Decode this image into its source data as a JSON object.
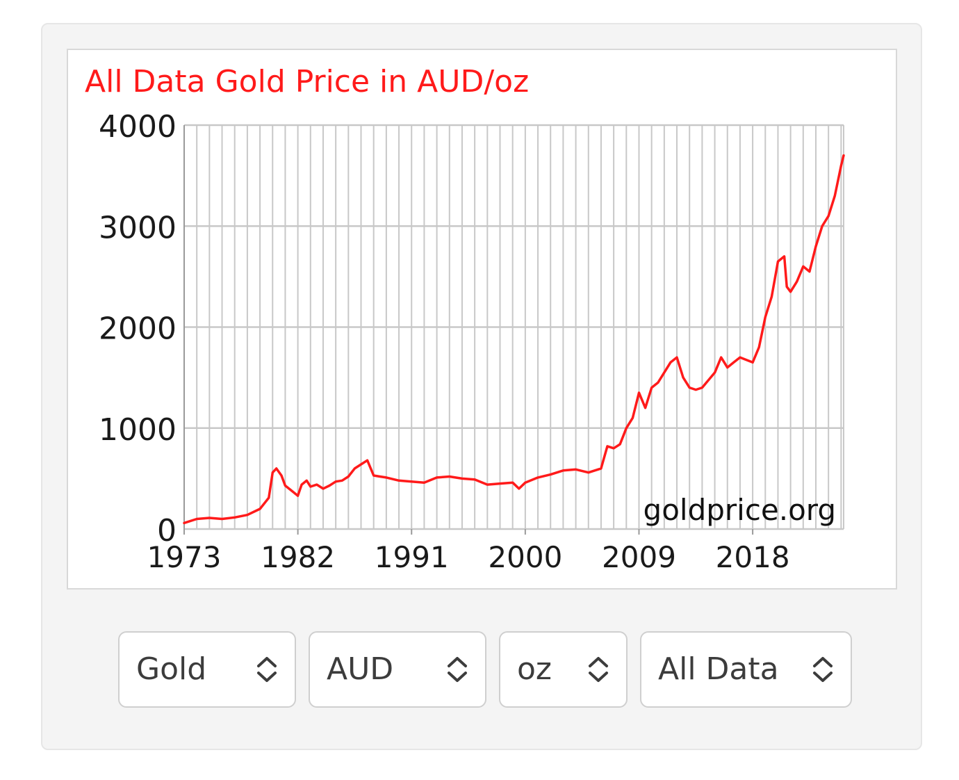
{
  "chart_data": {
    "type": "line",
    "title": "All Data Gold Price in AUD/oz",
    "title_color": "#ff1a1a",
    "line_color": "#ff1a1a",
    "watermark": "goldprice.org",
    "ylim": [
      0,
      4000
    ],
    "yticks": [
      0,
      1000,
      2000,
      3000,
      4000
    ],
    "xlim": [
      1973,
      2025.2
    ],
    "xticks": [
      1973,
      1982,
      1991,
      2000,
      2009,
      2018
    ],
    "grid": true,
    "series": [
      {
        "x": [
          1973.0,
          1974.0,
          1975.0,
          1976.0,
          1977.0,
          1978.0,
          1979.0,
          1979.7,
          1980.0,
          1980.3,
          1980.7,
          1981.0,
          1981.5,
          1982.0,
          1982.3,
          1982.7,
          1983.0,
          1983.5,
          1984.0,
          1984.5,
          1985.0,
          1985.5,
          1986.0,
          1986.5,
          1987.0,
          1987.5,
          1988.0,
          1988.5,
          1989.0,
          1990.0,
          1991.0,
          1992.0,
          1993.0,
          1994.0,
          1995.0,
          1996.0,
          1997.0,
          1998.0,
          1999.0,
          1999.5,
          2000.0,
          2001.0,
          2002.0,
          2003.0,
          2004.0,
          2005.0,
          2006.0,
          2006.5,
          2007.0,
          2007.5,
          2008.0,
          2008.5,
          2009.0,
          2009.5,
          2010.0,
          2010.5,
          2011.0,
          2011.5,
          2012.0,
          2012.5,
          2013.0,
          2013.5,
          2014.0,
          2015.0,
          2015.5,
          2016.0,
          2016.5,
          2017.0,
          2018.0,
          2018.5,
          2019.0,
          2019.5,
          2020.0,
          2020.5,
          2020.7,
          2021.0,
          2021.5,
          2022.0,
          2022.5,
          2023.0,
          2023.5,
          2024.0,
          2024.5,
          2025.0,
          2025.2
        ],
        "y": [
          60,
          100,
          110,
          100,
          115,
          140,
          200,
          310,
          560,
          600,
          530,
          430,
          380,
          330,
          440,
          480,
          420,
          440,
          400,
          430,
          470,
          480,
          520,
          600,
          640,
          680,
          530,
          520,
          510,
          480,
          470,
          460,
          510,
          520,
          500,
          490,
          440,
          450,
          460,
          400,
          460,
          510,
          540,
          580,
          590,
          560,
          600,
          820,
          800,
          840,
          1000,
          1100,
          1350,
          1200,
          1400,
          1450,
          1550,
          1650,
          1700,
          1500,
          1400,
          1380,
          1400,
          1550,
          1700,
          1600,
          1650,
          1700,
          1650,
          1800,
          2100,
          2300,
          2650,
          2700,
          2400,
          2350,
          2450,
          2600,
          2550,
          2800,
          3000,
          3100,
          3300,
          3600,
          3700
        ]
      }
    ]
  },
  "controls": {
    "metal": "Gold",
    "currency": "AUD",
    "unit": "oz",
    "range": "All Data"
  }
}
